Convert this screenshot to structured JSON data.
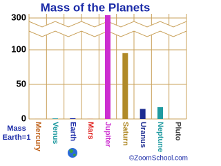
{
  "chart_data": {
    "type": "bar",
    "title": "Mass of the Planets",
    "y_label": [
      "Mass",
      "Earth=1"
    ],
    "credit": "©ZoomSchool.com",
    "categories": [
      "Mercury",
      "Venus",
      "Earth",
      "Mars",
      "Jupiter",
      "Saturn",
      "Uranus",
      "Neptune",
      "Pluto"
    ],
    "values": [
      0.055,
      0.815,
      1,
      0.107,
      317.8,
      95.2,
      14.5,
      17.1,
      0.002
    ],
    "colors": [
      "#c0641e",
      "#1f9aa0",
      "#1c2ca8",
      "#e0201e",
      "#cc2ed0",
      "#b08a28",
      "#1c2c90",
      "#1f9aa0",
      "#404040"
    ],
    "ylim": [
      0,
      320
    ],
    "yticks": [
      0,
      50,
      100,
      300
    ],
    "axis_break": true,
    "grid": true
  }
}
